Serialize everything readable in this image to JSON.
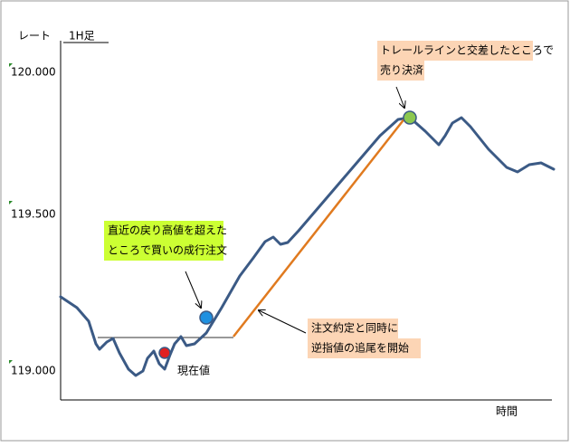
{
  "axis": {
    "y_label": "レート",
    "timeframe": "1H足",
    "x_label": "時間",
    "ticks": [
      "120.000",
      "119.500",
      "119.000"
    ]
  },
  "callouts": {
    "buy": [
      "直近の戻り高値を超えた",
      "ところで買いの成行注文"
    ],
    "trail": [
      "注文約定と同時に",
      "逆指値の追尾を開始"
    ],
    "sell": [
      "トレールラインと交差したところで",
      "売り決済"
    ]
  },
  "current_label": "現在値"
}
